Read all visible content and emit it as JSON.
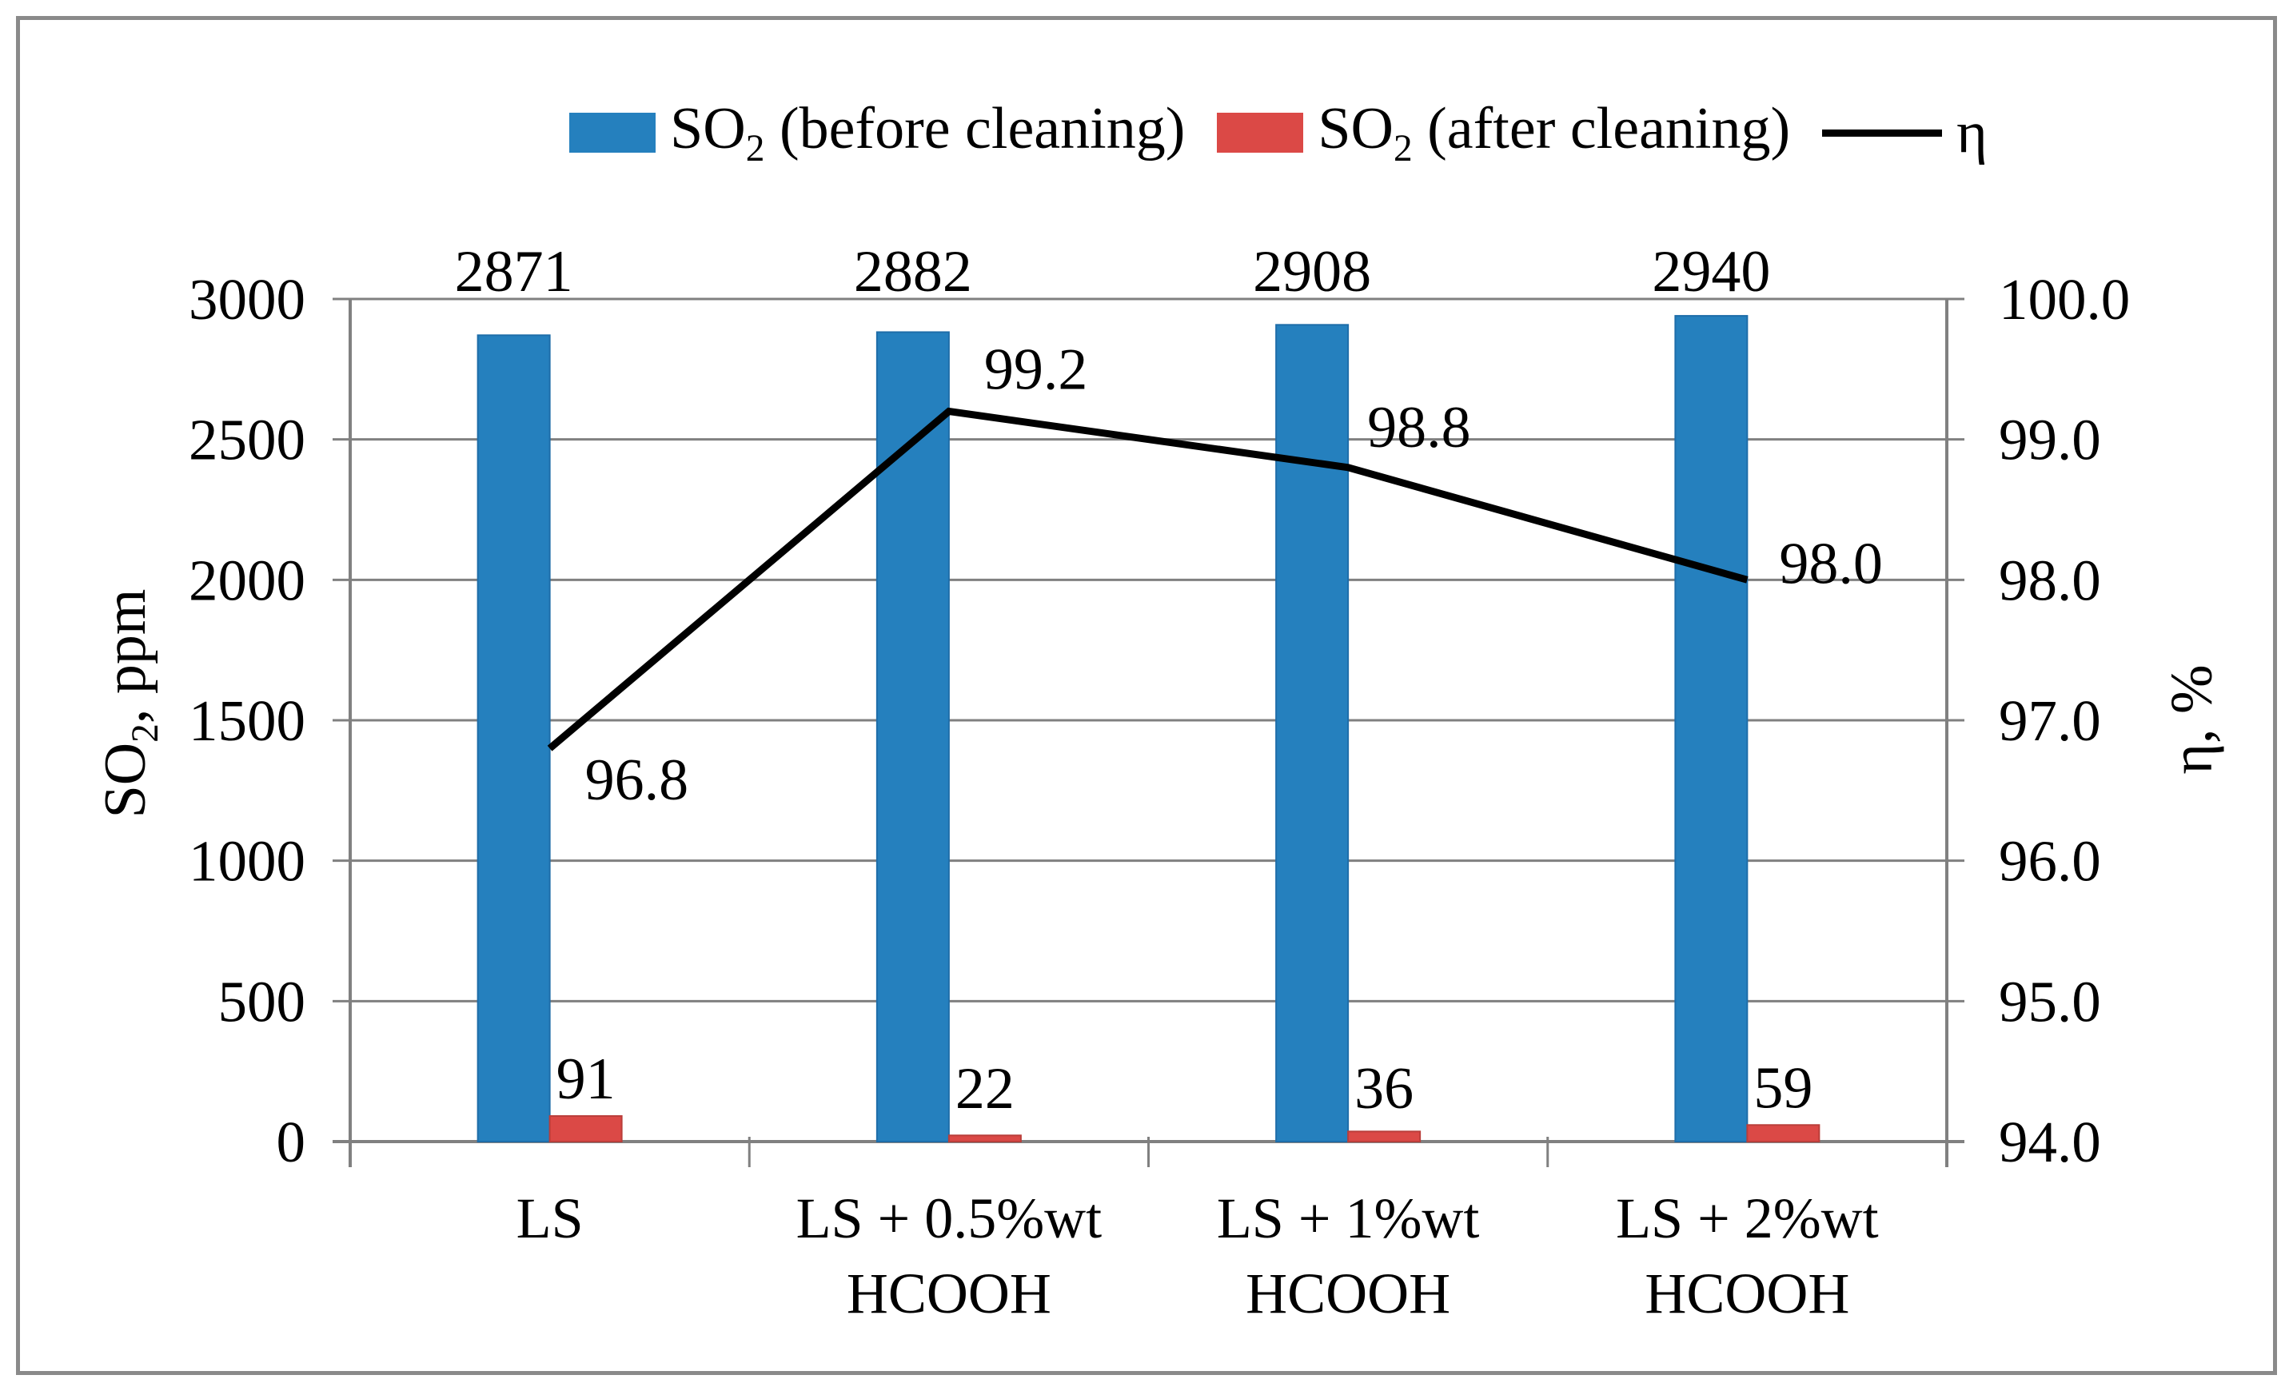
{
  "figure": {
    "border_color": "#8A8A8A",
    "background": "#FFFFFF",
    "grid_color": "#808080"
  },
  "legend": {
    "items": [
      {
        "key": "so2-before-cleaning",
        "swatch": "rect",
        "color": "#2580BE",
        "prefix": "SO",
        "sub": "2",
        "suffix": " (before cleaning)"
      },
      {
        "key": "so2-after-cleaning",
        "swatch": "rect",
        "color": "#DB4946",
        "prefix": "SO",
        "sub": "2",
        "suffix": " (after cleaning)"
      },
      {
        "key": "eta",
        "swatch": "line",
        "color": "#000000",
        "prefix": "",
        "sub": "",
        "suffix": "η"
      }
    ]
  },
  "axes": {
    "left_title": {
      "prefix": "SO",
      "sub": "2",
      "suffix": ", ppm"
    },
    "right_title": "η, %"
  },
  "chart_data": {
    "type": "bar+line",
    "title": "",
    "categories": [
      "LS",
      "LS + 0.5%wt\nHCOOH",
      "LS + 1%wt\nHCOOH",
      "LS + 2%wt\nHCOOH"
    ],
    "series": [
      {
        "name": "SO₂ (before cleaning)",
        "type": "bar",
        "axis": "left",
        "color": "#2580BE",
        "edge_color": "#1E6DA9",
        "values": [
          2871,
          2882,
          2908,
          2940
        ],
        "labels": [
          "2871",
          "2882",
          "2908",
          "2940"
        ]
      },
      {
        "name": "SO₂ (after cleaning)",
        "type": "bar",
        "axis": "left",
        "color": "#DB4946",
        "edge_color": "#BA3E3A",
        "values": [
          91,
          22,
          36,
          59
        ],
        "labels": [
          "91",
          "22",
          "36",
          "59"
        ]
      },
      {
        "name": "η",
        "type": "line",
        "axis": "right",
        "color": "#000000",
        "values": [
          96.8,
          99.2,
          98.8,
          98.0
        ],
        "labels": [
          "96.8",
          "99.2",
          "98.8",
          "98.0"
        ]
      }
    ],
    "left_axis": {
      "label": "SO₂, ppm",
      "min": 0,
      "max": 3000,
      "step": 500,
      "ticks": [
        "0",
        "500",
        "1000",
        "1500",
        "2000",
        "2500",
        "3000"
      ]
    },
    "right_axis": {
      "label": "η, %",
      "min": 94.0,
      "max": 100.0,
      "step": 1.0,
      "ticks": [
        "94.0",
        "95.0",
        "96.0",
        "97.0",
        "98.0",
        "99.0",
        "100.0"
      ]
    },
    "grid": true,
    "legend_position": "top"
  }
}
